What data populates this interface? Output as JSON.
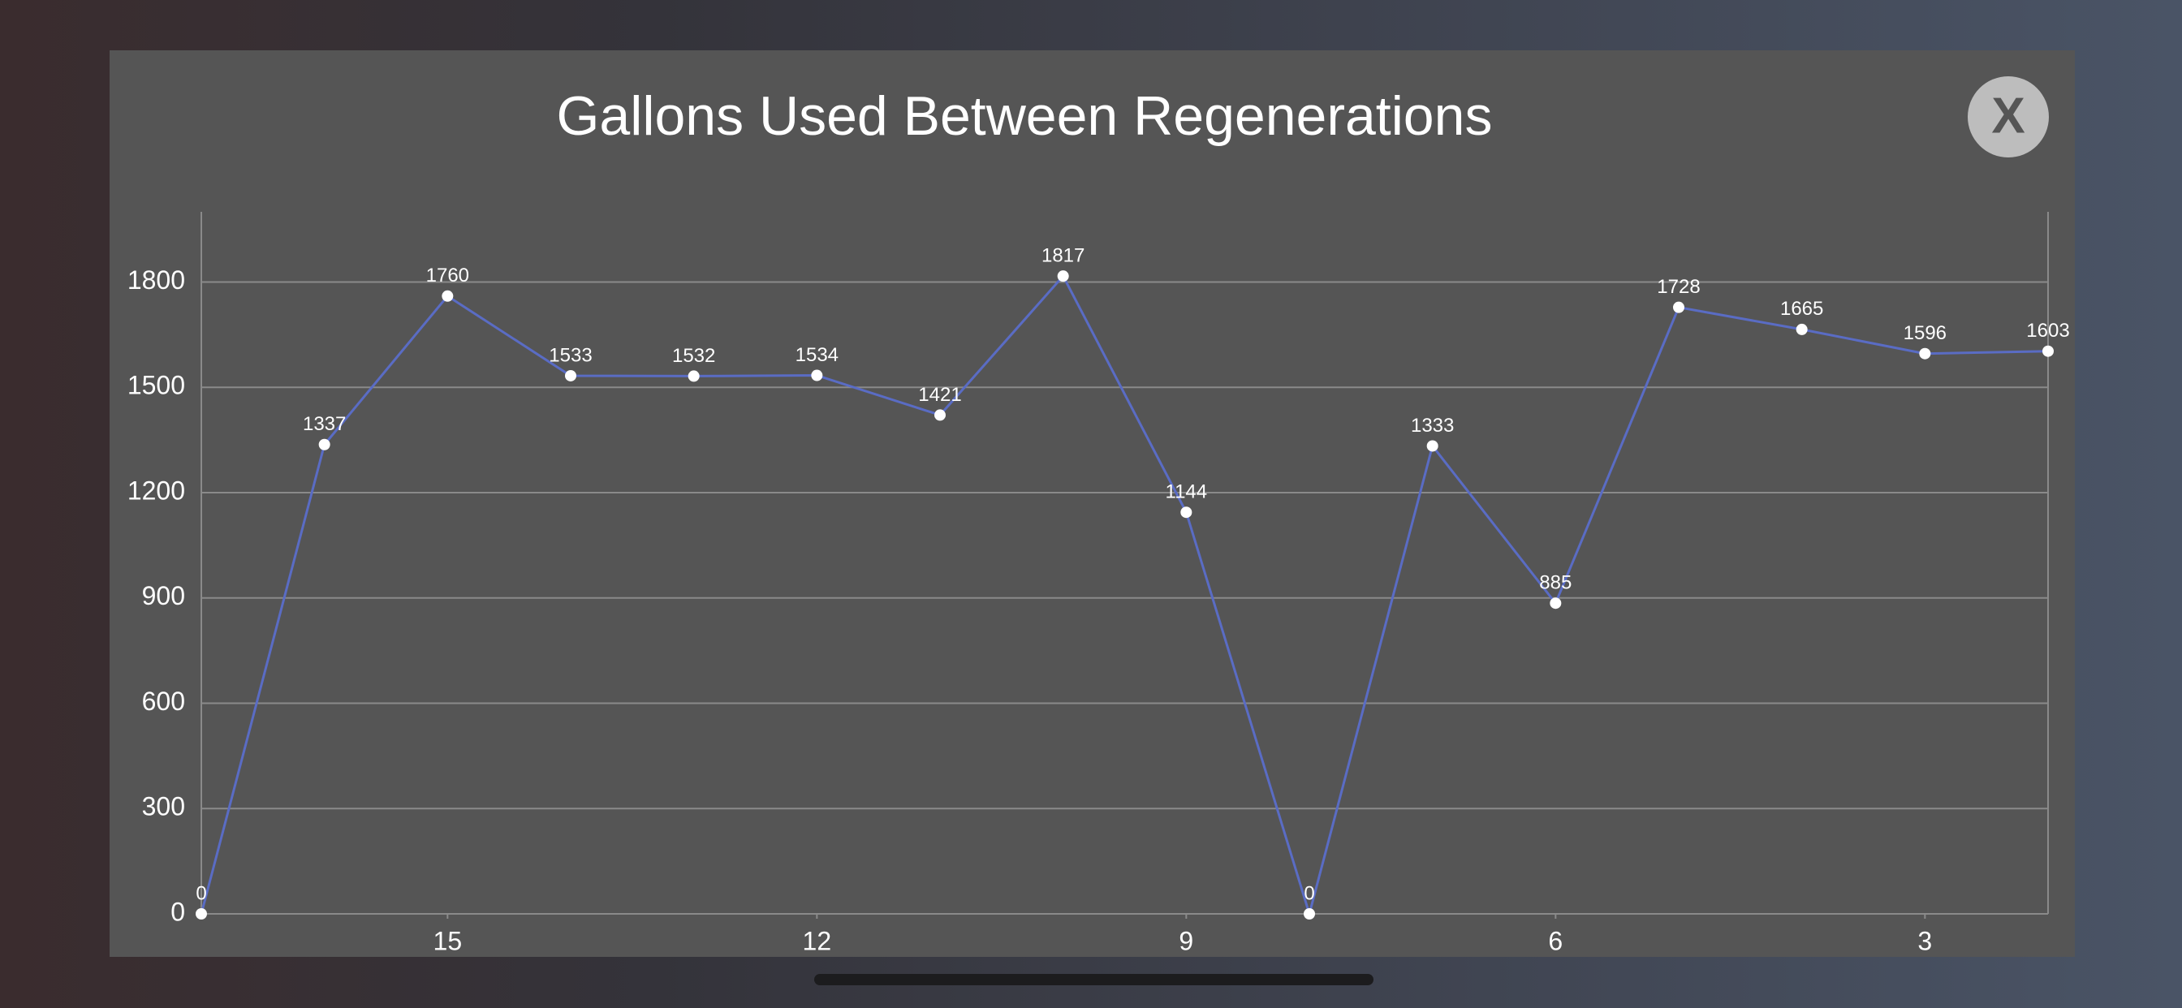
{
  "chart_data": {
    "type": "line",
    "title": "Gallons Used Between Regenerations",
    "x": [
      17,
      16,
      15,
      14,
      13,
      12,
      11,
      10,
      9,
      8,
      7,
      6,
      5,
      4,
      3,
      2
    ],
    "values": [
      0,
      1337,
      1760,
      1533,
      1532,
      1534,
      1421,
      1817,
      1144,
      0,
      1333,
      885,
      1728,
      1665,
      1596,
      1603
    ],
    "color": "#5a6cc4",
    "xlim": [
      17,
      2
    ],
    "xticks": [
      15,
      12,
      9,
      6,
      3
    ],
    "ylim": [
      0,
      2000
    ],
    "yticks": [
      0,
      300,
      600,
      900,
      1200,
      1500,
      1800
    ],
    "grid": true
  },
  "close_button": {
    "label": "X"
  }
}
